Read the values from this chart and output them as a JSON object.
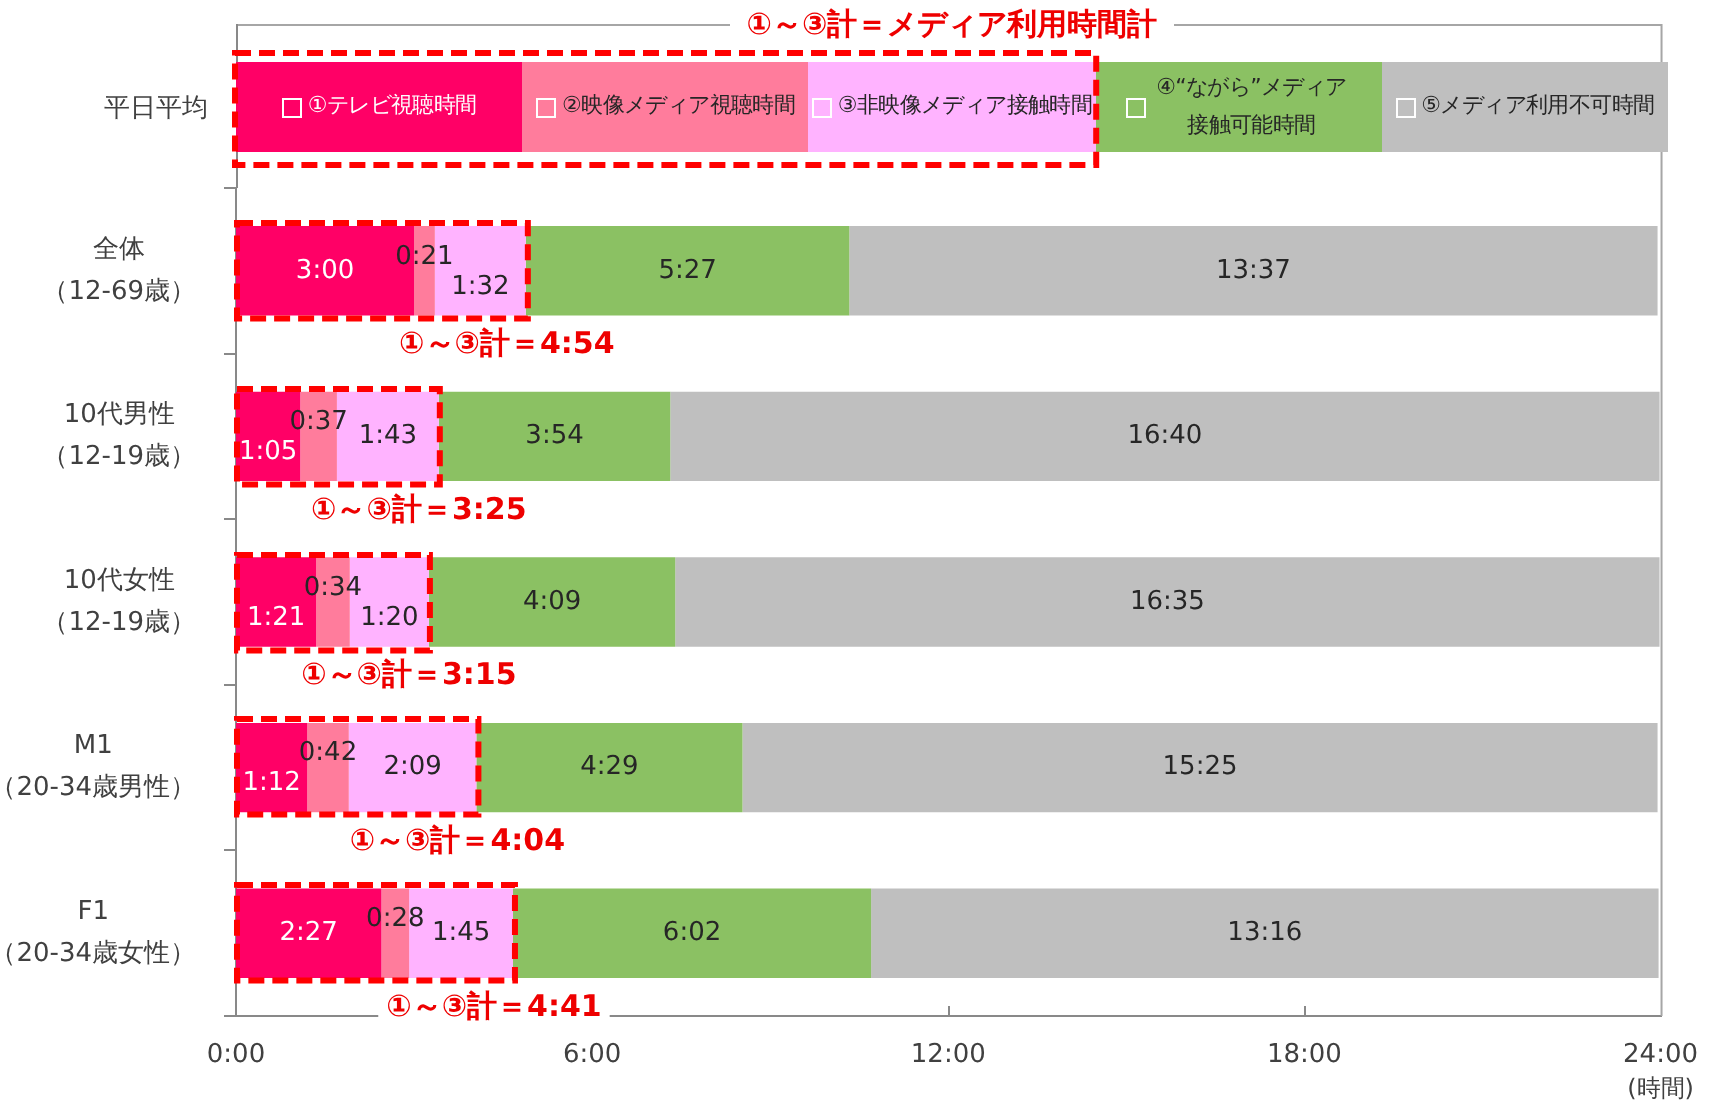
{
  "chart_data": {
    "type": "bar",
    "orientation": "horizontal",
    "stacked": true,
    "categories": [
      "全体（12-69歳）",
      "10代男性（12-19歳）",
      "10代女性（12-19歳）",
      "M1（20-34歳男性）",
      "F1（20-34歳女性）"
    ],
    "series": [
      {
        "name": "①テレビ視聴時間",
        "color": "#ff0066",
        "values": [
          3,
          1.083,
          1.35,
          1.2,
          2.45
        ],
        "value_labels": [
          "3:00",
          "1:05",
          "1:21",
          "1:12",
          "2:27"
        ]
      },
      {
        "name": "②映像メディア視聴時間",
        "color": "#ff7c9c",
        "values": [
          0.35,
          0.617,
          0.567,
          0.7,
          0.467
        ],
        "value_labels": [
          "0:21",
          "0:37",
          "0:34",
          "0:42",
          "0:28"
        ]
      },
      {
        "name": "③非映像メディア接触時間",
        "color": "#ffb3ff",
        "values": [
          1.533,
          1.717,
          1.333,
          2.15,
          1.75
        ],
        "value_labels": [
          "1:32",
          "1:43",
          "1:20",
          "2:09",
          "1:45"
        ]
      },
      {
        "name": "④“ながら”メディア接触可能時間",
        "color": "#8bc163",
        "values": [
          5.45,
          3.9,
          4.15,
          4.483,
          6.033
        ],
        "value_labels": [
          "5:27",
          "3:54",
          "4:09",
          "4:29",
          "6:02"
        ]
      },
      {
        "name": "⑤メディア利用不可時間",
        "color": "#bfbfbf",
        "values": [
          13.617,
          16.667,
          16.583,
          15.417,
          13.267
        ],
        "value_labels": [
          "13:37",
          "16:40",
          "16:35",
          "15:25",
          "13:16"
        ]
      }
    ],
    "xlim": [
      0,
      24
    ],
    "xticks": [
      {
        "value": 0,
        "label": "0:00"
      },
      {
        "value": 6,
        "label": "6:00"
      },
      {
        "value": 12,
        "label": "12:00"
      },
      {
        "value": 18,
        "label": "18:00"
      },
      {
        "value": 24,
        "label": "24:00"
      }
    ],
    "xlabel": "(時間)",
    "legend": "top",
    "legend_title": "平日平均",
    "annotations": [
      "①～③計＝メディア利用時間計",
      {
        "text": "①～③計＝4:54",
        "x": 4.9,
        "y": "全体（12-69歳）"
      },
      {
        "text": "①～③計＝3:25",
        "x": 3.417,
        "y": "10代男性（12-19歳）"
      },
      {
        "text": "①～③計＝3:15",
        "x": 3.25,
        "y": "10代女性（12-19歳）"
      },
      {
        "text": "①～③計＝4:04",
        "x": 4.067,
        "y": "M1（20-34歳男性）"
      },
      {
        "text": "①～③計＝4:41",
        "x": 4.683,
        "y": "F1（20-34歳女性）"
      }
    ]
  }
}
